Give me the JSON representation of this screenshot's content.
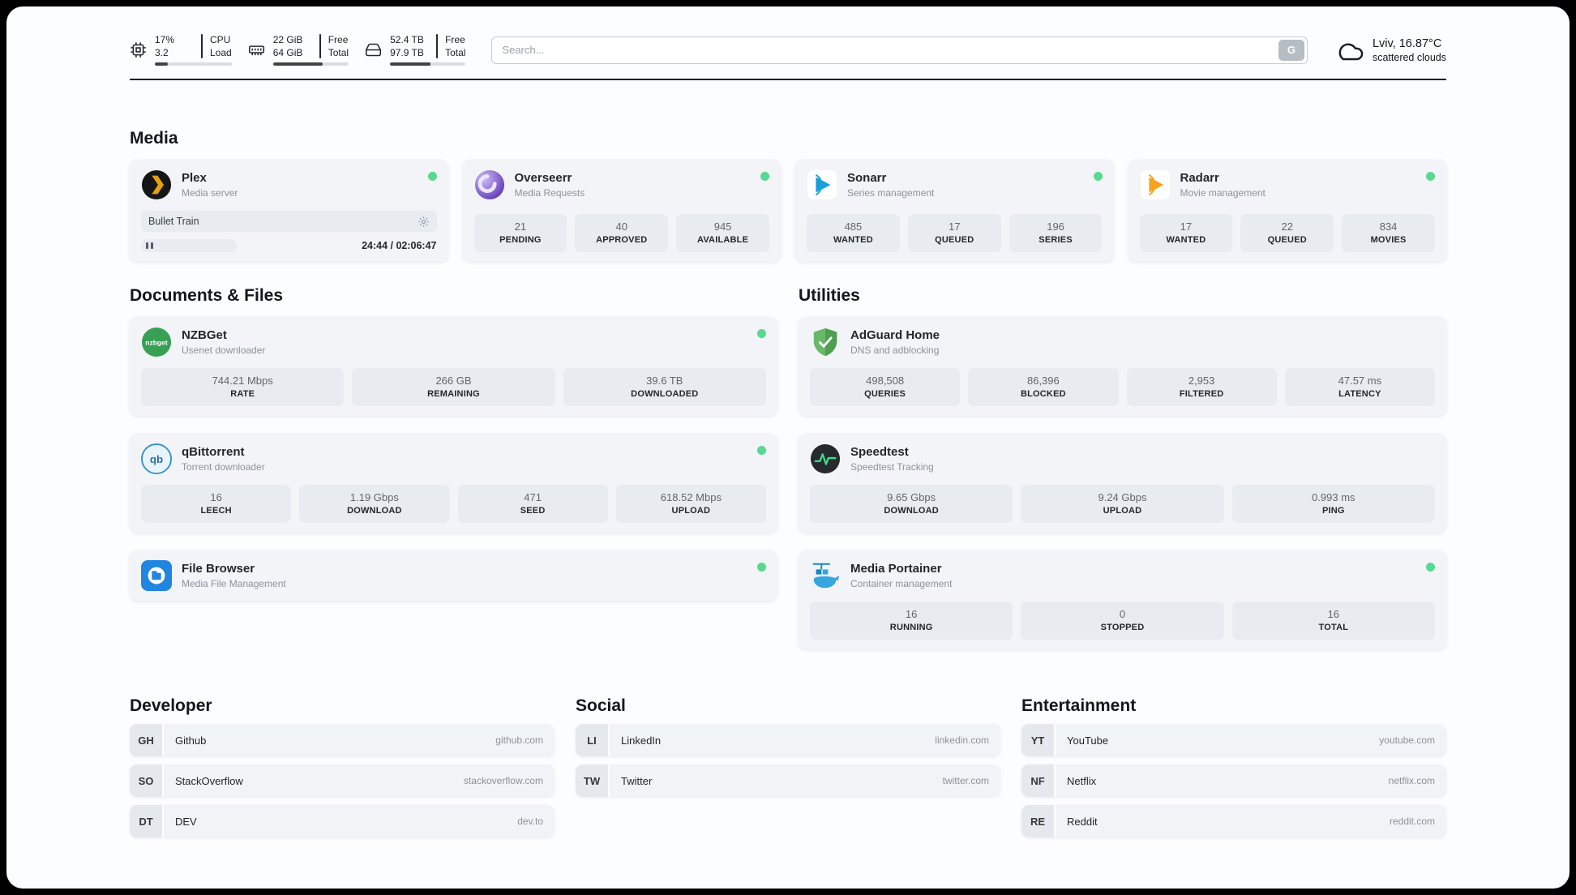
{
  "colors": {
    "accent_green": "#57d990",
    "page_bg": "#fcfdff",
    "card_bg": "#f2f4f7",
    "stat_bg": "#e8ecf0"
  },
  "header": {
    "cpu": {
      "value_top": "17%",
      "value_bottom": "3.2",
      "label_top": "CPU",
      "label_bottom": "Load",
      "bar_percent": 17
    },
    "ram": {
      "value_top": "22 GiB",
      "value_bottom": "64 GiB",
      "label_top": "Free",
      "label_bottom": "Total",
      "bar_percent": 66
    },
    "disk": {
      "value_top": "52.4 TB",
      "value_bottom": "97.9 TB",
      "label_top": "Free",
      "label_bottom": "Total",
      "bar_percent": 54
    },
    "search": {
      "placeholder": "Search...",
      "button_label": "G"
    },
    "weather": {
      "location": "Lviv, 16.87°C",
      "condition": "scattered clouds"
    }
  },
  "sections": {
    "media": {
      "title": "Media",
      "cards": [
        {
          "name": "Plex",
          "desc": "Media server",
          "status": "online",
          "player": {
            "track": "Bullet Train",
            "time": "24:44 / 02:06:47"
          }
        },
        {
          "name": "Overseerr",
          "desc": "Media Requests",
          "status": "online",
          "stats": [
            {
              "value": "21",
              "label": "PENDING"
            },
            {
              "value": "40",
              "label": "APPROVED"
            },
            {
              "value": "945",
              "label": "AVAILABLE"
            }
          ]
        },
        {
          "name": "Sonarr",
          "desc": "Series management",
          "status": "online",
          "stats": [
            {
              "value": "485",
              "label": "WANTED"
            },
            {
              "value": "17",
              "label": "QUEUED"
            },
            {
              "value": "196",
              "label": "SERIES"
            }
          ]
        },
        {
          "name": "Radarr",
          "desc": "Movie management",
          "status": "online",
          "stats": [
            {
              "value": "17",
              "label": "WANTED"
            },
            {
              "value": "22",
              "label": "QUEUED"
            },
            {
              "value": "834",
              "label": "MOVIES"
            }
          ]
        }
      ]
    },
    "documents": {
      "title": "Documents & Files",
      "cards": [
        {
          "name": "NZBGet",
          "desc": "Usenet downloader",
          "status": "online",
          "logo_text": "nzbget",
          "stats": [
            {
              "value": "744.21 Mbps",
              "label": "RATE"
            },
            {
              "value": "266 GB",
              "label": "REMAINING"
            },
            {
              "value": "39.6 TB",
              "label": "DOWNLOADED"
            }
          ]
        },
        {
          "name": "qBittorrent",
          "desc": "Torrent downloader",
          "status": "online",
          "logo_text": "qb",
          "stats": [
            {
              "value": "16",
              "label": "LEECH"
            },
            {
              "value": "1.19 Gbps",
              "label": "DOWNLOAD"
            },
            {
              "value": "471",
              "label": "SEED"
            },
            {
              "value": "618.52 Mbps",
              "label": "UPLOAD"
            }
          ]
        },
        {
          "name": "File Browser",
          "desc": "Media File Management",
          "status": "online",
          "stats": []
        }
      ]
    },
    "utilities": {
      "title": "Utilities",
      "cards": [
        {
          "name": "AdGuard Home",
          "desc": "DNS and adblocking",
          "stats": [
            {
              "value": "498,508",
              "label": "QUERIES"
            },
            {
              "value": "86,396",
              "label": "BLOCKED"
            },
            {
              "value": "2,953",
              "label": "FILTERED"
            },
            {
              "value": "47.57 ms",
              "label": "LATENCY"
            }
          ]
        },
        {
          "name": "Speedtest",
          "desc": "Speedtest Tracking",
          "stats": [
            {
              "value": "9.65 Gbps",
              "label": "DOWNLOAD"
            },
            {
              "value": "9.24 Gbps",
              "label": "UPLOAD"
            },
            {
              "value": "0.993 ms",
              "label": "PING"
            }
          ]
        },
        {
          "name": "Media Portainer",
          "desc": "Container management",
          "status": "online",
          "stats": [
            {
              "value": "16",
              "label": "RUNNING"
            },
            {
              "value": "0",
              "label": "STOPPED"
            },
            {
              "value": "16",
              "label": "TOTAL"
            }
          ]
        }
      ]
    },
    "developer": {
      "title": "Developer",
      "links": [
        {
          "initials": "GH",
          "name": "Github",
          "url": "github.com"
        },
        {
          "initials": "SO",
          "name": "StackOverflow",
          "url": "stackoverflow.com"
        },
        {
          "initials": "DT",
          "name": "DEV",
          "url": "dev.to"
        }
      ]
    },
    "social": {
      "title": "Social",
      "links": [
        {
          "initials": "LI",
          "name": "LinkedIn",
          "url": "linkedin.com"
        },
        {
          "initials": "TW",
          "name": "Twitter",
          "url": "twitter.com"
        }
      ]
    },
    "entertainment": {
      "title": "Entertainment",
      "links": [
        {
          "initials": "YT",
          "name": "YouTube",
          "url": "youtube.com"
        },
        {
          "initials": "NF",
          "name": "Netflix",
          "url": "netflix.com"
        },
        {
          "initials": "RE",
          "name": "Reddit",
          "url": "reddit.com"
        }
      ]
    }
  }
}
